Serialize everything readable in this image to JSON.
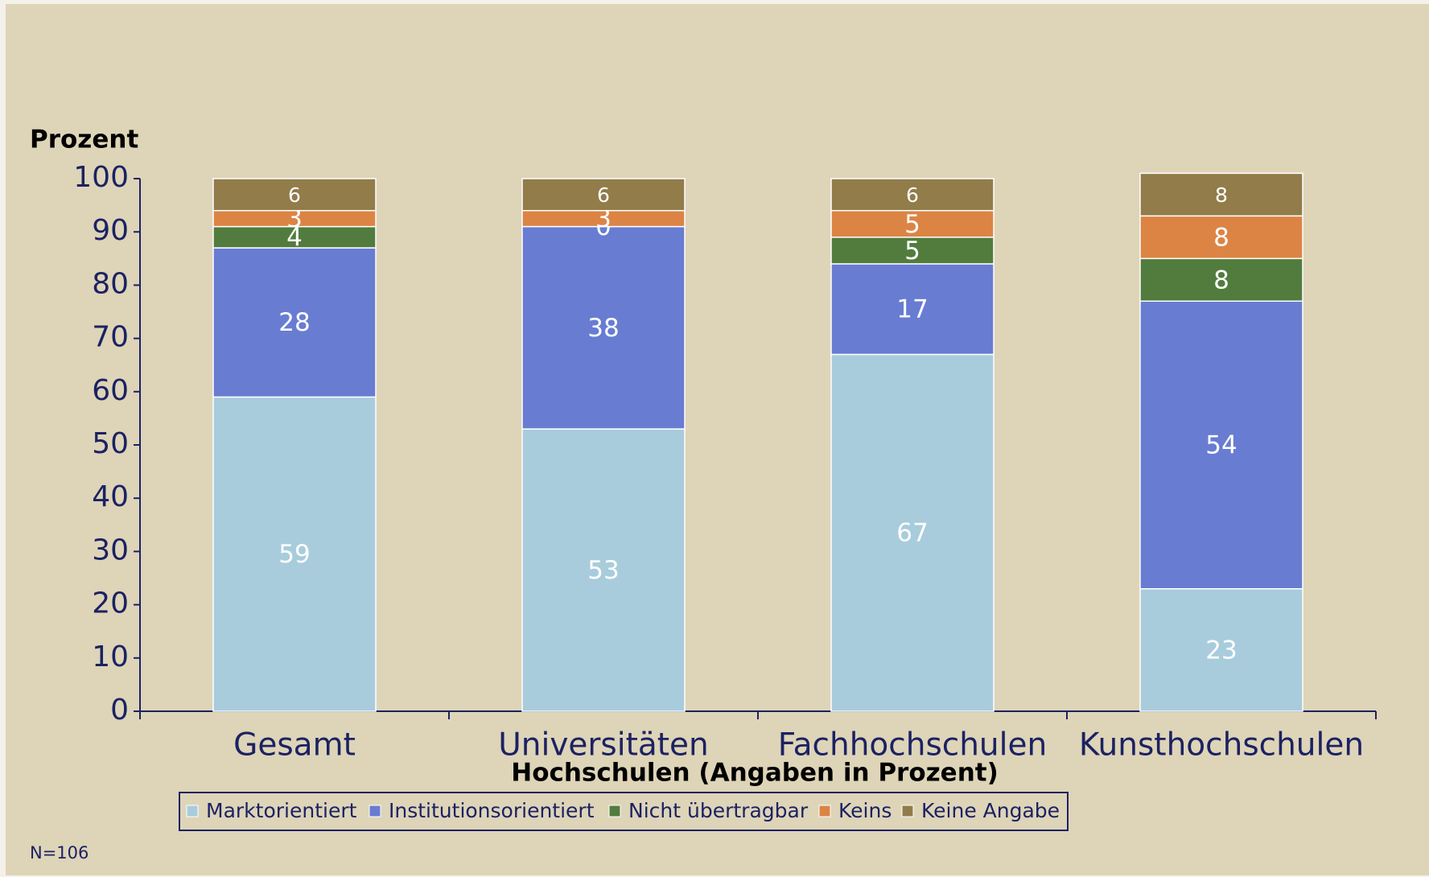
{
  "chart_data": {
    "type": "stacked_bar",
    "y_axis_label": "Prozent",
    "x_axis_label": "Hochschulen (Angaben in Prozent)",
    "note": "N=106",
    "categories": [
      "Gesamt",
      "Universitäten",
      "Fachhochschulen",
      "Kunsthochschulen"
    ],
    "series": [
      {
        "name": "Marktorientiert",
        "color": "#a8ccdc",
        "values": [
          59,
          53,
          67,
          23
        ]
      },
      {
        "name": "Institutionsorientiert",
        "color": "#687cd2",
        "values": [
          28,
          38,
          17,
          54
        ]
      },
      {
        "name": "Nicht übertragbar",
        "color": "#527c3e",
        "values": [
          4,
          0,
          5,
          8
        ]
      },
      {
        "name": "Keins",
        "color": "#dc8444",
        "values": [
          3,
          3,
          5,
          8
        ]
      },
      {
        "name": "Keine Angabe",
        "color": "#917c4a",
        "values": [
          6,
          6,
          6,
          8
        ]
      }
    ],
    "ylim": [
      0,
      100
    ],
    "yticks": [
      0,
      10,
      20,
      30,
      40,
      50,
      60,
      70,
      80,
      90,
      100
    ],
    "grid": false,
    "legend": "bottom"
  }
}
